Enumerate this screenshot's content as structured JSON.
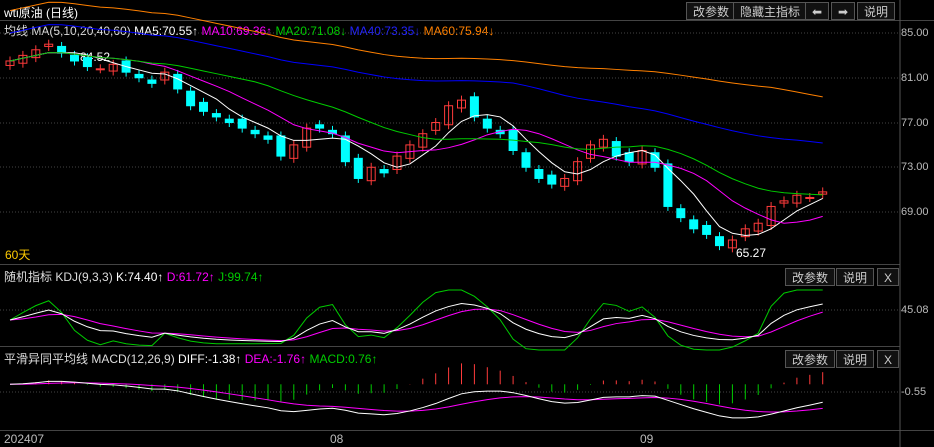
{
  "title": "wti原油 (日线)",
  "toolbar": {
    "params": "改参数",
    "hide_main": "隐藏主指标",
    "left": "⬅",
    "right": "➡",
    "help": "说明"
  },
  "ma": {
    "label": "均线 MA(5,10,20,40,60)",
    "ma5": "MA5:70.55↑",
    "ma10": "MA10:69.36↑",
    "ma20": "MA20:71.08↓",
    "ma40": "MA40:73.35↓",
    "ma60": "MA60:75.94↓"
  },
  "price_axis": [
    "85.00",
    "81.00",
    "77.00",
    "73.00",
    "69.00"
  ],
  "annot": {
    "high": "84.52",
    "low": "65.27",
    "period": "60天"
  },
  "kdj": {
    "label": "随机指标 KDJ(9,3,3)",
    "k": "K:74.40↑",
    "d": "D:61.72↑",
    "j": "J:99.74↑",
    "axis": "45.08",
    "params": "改参数",
    "help": "说明",
    "close": "X"
  },
  "macd": {
    "label": "平滑异同平均线 MACD(12,26,9)",
    "diff": "DIFF:-1.38↑",
    "dea": "DEA:-1.76↑",
    "macd": "MACD:0.76↑",
    "axis": "-0.55",
    "params": "改参数",
    "help": "说明",
    "close": "X"
  },
  "dates": [
    "202407",
    "08",
    "09"
  ],
  "colors": {
    "up": "#ff3b3b",
    "down": "#00ffff",
    "ma5": "#ffffff",
    "ma10": "#ff00ff",
    "ma20": "#00cc00",
    "ma40": "#0000ff",
    "ma60": "#ff8000"
  },
  "chart_data": {
    "type": "candlestick",
    "closes": [
      82.5,
      83,
      83.5,
      84,
      83.2,
      82.5,
      82,
      81.8,
      82.2,
      81.5,
      81,
      80.5,
      81.5,
      80,
      78.5,
      78,
      77.5,
      77,
      76.5,
      76,
      75.5,
      74,
      75,
      76.5,
      76.5,
      76,
      73.5,
      72,
      73,
      72.5,
      74,
      75,
      76,
      77,
      78.5,
      79,
      77.5,
      76.5,
      76,
      74.5,
      73,
      72,
      71.5,
      72,
      73.5,
      75,
      75.5,
      74,
      73.5,
      74.5,
      73,
      69.5,
      68.5,
      67.5,
      67,
      66,
      66.5,
      67.5,
      68,
      69.5,
      70,
      70.5,
      70.3,
      70.8
    ]
  }
}
